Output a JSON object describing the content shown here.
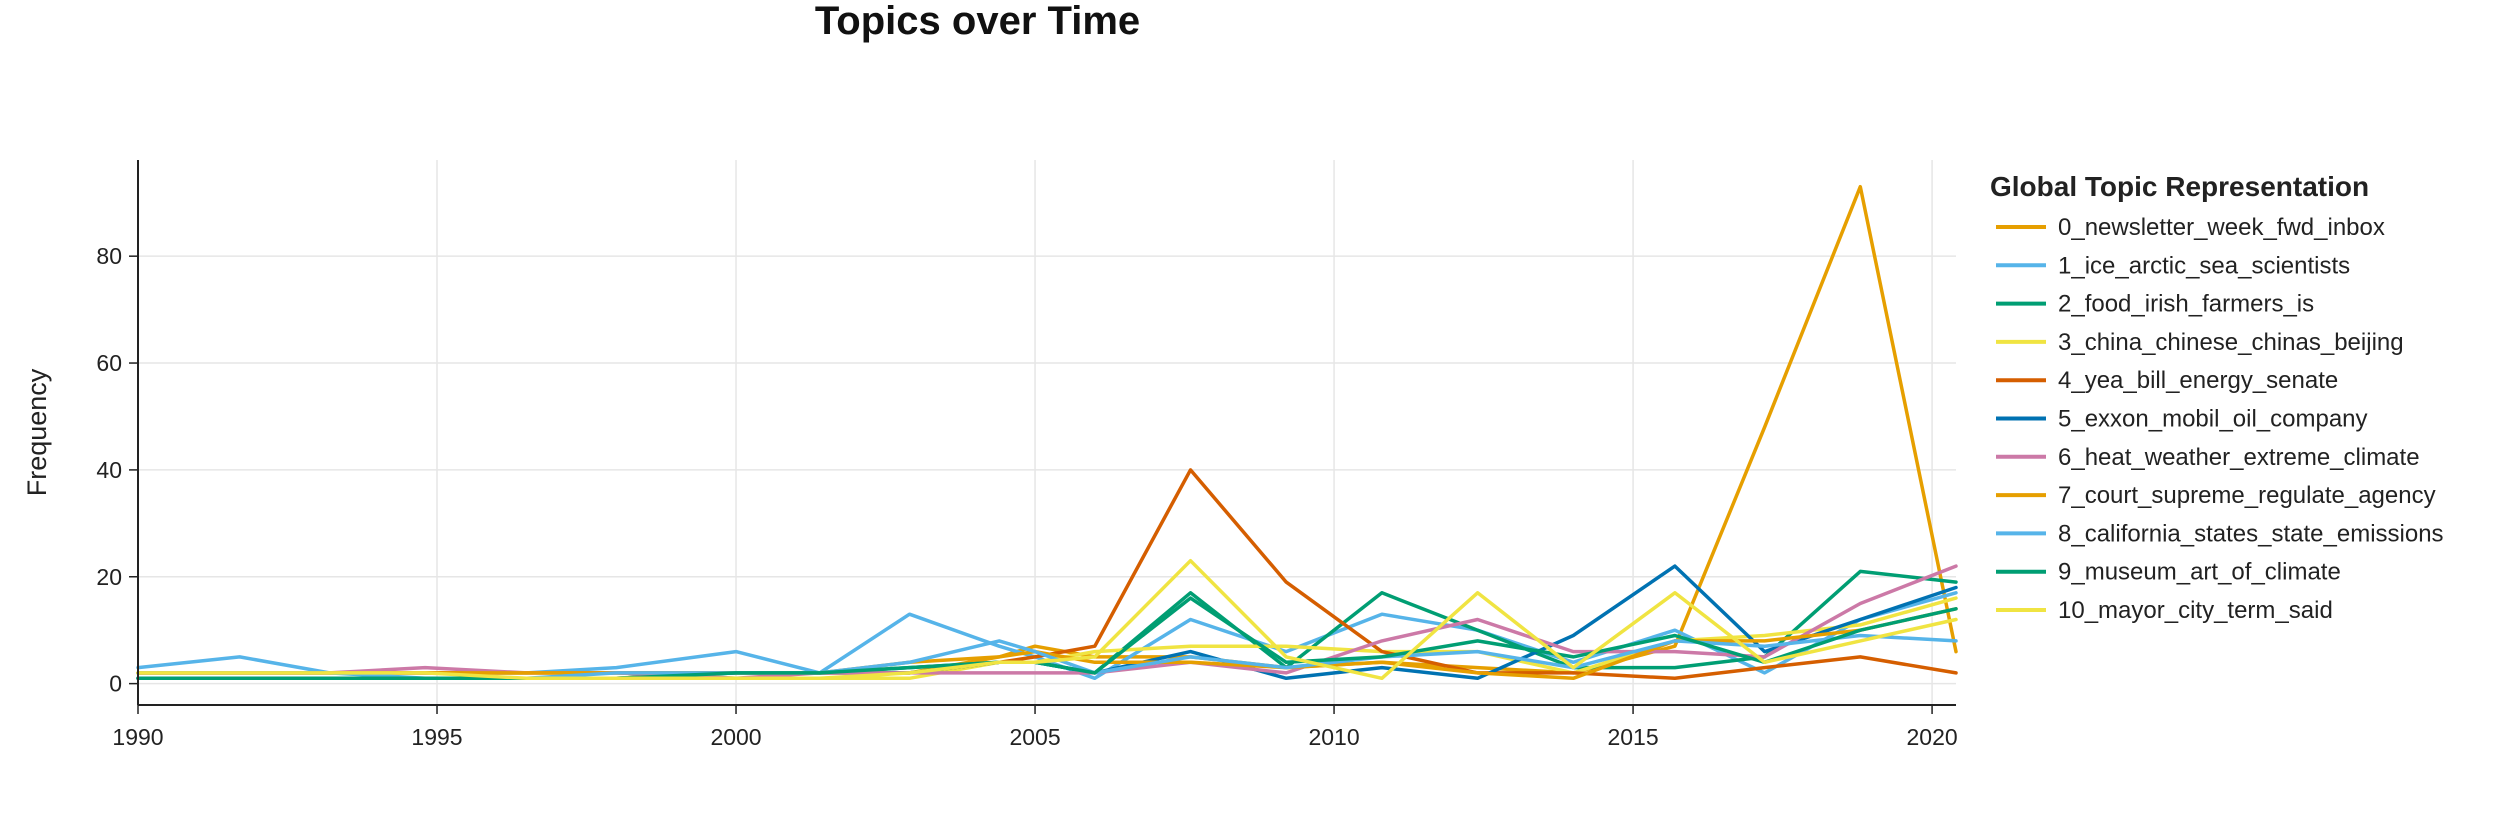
{
  "chart_data": {
    "type": "line",
    "title": "Topics over Time",
    "xlabel": "",
    "ylabel": "Frequency",
    "xlim": [
      1990,
      2020.4
    ],
    "ylim": [
      -4,
      98
    ],
    "x_ticks": [
      1990,
      1995,
      2000,
      2005,
      2010,
      2015,
      2020
    ],
    "y_ticks": [
      0,
      20,
      40,
      60,
      80
    ],
    "grid": true,
    "legend_title": "Global Topic Representation",
    "legend_position": "right",
    "series": [
      {
        "name": "0_newsletter_week_fwd_inbox",
        "color": "#E69F00",
        "points": [
          [
            1990,
            2
          ],
          [
            1991.7,
            2
          ],
          [
            1993.2,
            2
          ],
          [
            1994.8,
            2
          ],
          [
            1996.5,
            2
          ],
          [
            1998,
            2
          ],
          [
            2000,
            2
          ],
          [
            2001.4,
            2
          ],
          [
            2002.9,
            2
          ],
          [
            2004.4,
            5
          ],
          [
            2005,
            7
          ],
          [
            2006,
            5
          ],
          [
            2007.6,
            5
          ],
          [
            2009.2,
            3
          ],
          [
            2010.8,
            4
          ],
          [
            2012.4,
            3
          ],
          [
            2014,
            2
          ],
          [
            2015.7,
            7
          ],
          [
            2017.2,
            48
          ],
          [
            2018.8,
            93
          ],
          [
            2020.4,
            6
          ]
        ]
      },
      {
        "name": "1_ice_arctic_sea_scientists",
        "color": "#56B4E9",
        "points": [
          [
            1990,
            3
          ],
          [
            1991.7,
            5
          ],
          [
            1993.2,
            2
          ],
          [
            1994.8,
            2
          ],
          [
            1996.5,
            2
          ],
          [
            1998,
            3
          ],
          [
            2000,
            6
          ],
          [
            2001.4,
            2
          ],
          [
            2002.9,
            13
          ],
          [
            2004.4,
            7
          ],
          [
            2005,
            5
          ],
          [
            2006,
            1
          ],
          [
            2007.6,
            12
          ],
          [
            2009.2,
            6
          ],
          [
            2010.8,
            13
          ],
          [
            2012.4,
            10
          ],
          [
            2014,
            4
          ],
          [
            2015.7,
            10
          ],
          [
            2017.2,
            2
          ],
          [
            2018.8,
            12
          ],
          [
            2020.4,
            17
          ]
        ]
      },
      {
        "name": "2_food_irish_farmers_is",
        "color": "#009E73",
        "points": [
          [
            1990,
            1
          ],
          [
            1991.7,
            1
          ],
          [
            1993.2,
            1
          ],
          [
            1994.8,
            1
          ],
          [
            1996.5,
            1
          ],
          [
            1998,
            1
          ],
          [
            2000,
            2
          ],
          [
            2001.4,
            2
          ],
          [
            2002.9,
            3
          ],
          [
            2004.4,
            4
          ],
          [
            2005,
            4
          ],
          [
            2006,
            2
          ],
          [
            2007.6,
            17
          ],
          [
            2009.2,
            3
          ],
          [
            2010.8,
            17
          ],
          [
            2012.4,
            10
          ],
          [
            2014,
            3
          ],
          [
            2015.7,
            3
          ],
          [
            2017.2,
            5
          ],
          [
            2018.8,
            21
          ],
          [
            2020.4,
            19
          ]
        ]
      },
      {
        "name": "3_china_chinese_chinas_beijing",
        "color": "#F0E442",
        "points": [
          [
            1990,
            2
          ],
          [
            1991.7,
            2
          ],
          [
            1993.2,
            2
          ],
          [
            1994.8,
            2
          ],
          [
            1996.5,
            2
          ],
          [
            1998,
            2
          ],
          [
            2000,
            1
          ],
          [
            2001.4,
            1
          ],
          [
            2002.9,
            1
          ],
          [
            2004.4,
            4
          ],
          [
            2005,
            4
          ],
          [
            2006,
            6
          ],
          [
            2007.6,
            7
          ],
          [
            2009.2,
            7
          ],
          [
            2010.8,
            6
          ],
          [
            2012.4,
            6
          ],
          [
            2014,
            2
          ],
          [
            2015.7,
            8
          ],
          [
            2017.2,
            9
          ],
          [
            2018.8,
            11
          ],
          [
            2020.4,
            16
          ]
        ]
      },
      {
        "name": "4_yea_bill_energy_senate",
        "color": "#D55E00",
        "points": [
          [
            1990,
            2
          ],
          [
            1991.7,
            2
          ],
          [
            1993.2,
            2
          ],
          [
            1994.8,
            2
          ],
          [
            1996.5,
            2
          ],
          [
            1998,
            2
          ],
          [
            2000,
            2
          ],
          [
            2001.4,
            2
          ],
          [
            2002.9,
            2
          ],
          [
            2004.4,
            4
          ],
          [
            2005,
            5
          ],
          [
            2006,
            7
          ],
          [
            2007.6,
            40
          ],
          [
            2009.2,
            19
          ],
          [
            2010.8,
            6
          ],
          [
            2012.4,
            2
          ],
          [
            2014,
            2
          ],
          [
            2015.7,
            1
          ],
          [
            2017.2,
            3
          ],
          [
            2018.8,
            5
          ],
          [
            2020.4,
            2
          ]
        ]
      },
      {
        "name": "5_exxon_mobil_oil_company",
        "color": "#0072B2",
        "points": [
          [
            1990,
            1
          ],
          [
            1991.7,
            1
          ],
          [
            1993.2,
            1
          ],
          [
            1994.8,
            1
          ],
          [
            1996.5,
            1
          ],
          [
            1998,
            1
          ],
          [
            2000,
            2
          ],
          [
            2001.4,
            2
          ],
          [
            2002.9,
            2
          ],
          [
            2004.4,
            4
          ],
          [
            2005,
            4
          ],
          [
            2006,
            2
          ],
          [
            2007.6,
            6
          ],
          [
            2009.2,
            1
          ],
          [
            2010.8,
            3
          ],
          [
            2012.4,
            1
          ],
          [
            2014,
            9
          ],
          [
            2015.7,
            22
          ],
          [
            2017.2,
            6
          ],
          [
            2018.8,
            12
          ],
          [
            2020.4,
            18
          ]
        ]
      },
      {
        "name": "6_heat_weather_extreme_climate",
        "color": "#CC79A7",
        "points": [
          [
            1990,
            2
          ],
          [
            1991.7,
            2
          ],
          [
            1993.2,
            2
          ],
          [
            1994.8,
            3
          ],
          [
            1996.5,
            2
          ],
          [
            1998,
            2
          ],
          [
            2000,
            1
          ],
          [
            2001.4,
            2
          ],
          [
            2002.9,
            2
          ],
          [
            2004.4,
            2
          ],
          [
            2005,
            2
          ],
          [
            2006,
            2
          ],
          [
            2007.6,
            4
          ],
          [
            2009.2,
            2
          ],
          [
            2010.8,
            8
          ],
          [
            2012.4,
            12
          ],
          [
            2014,
            6
          ],
          [
            2015.7,
            6
          ],
          [
            2017.2,
            5
          ],
          [
            2018.8,
            15
          ],
          [
            2020.4,
            22
          ]
        ]
      },
      {
        "name": "7_court_supreme_regulate_agency",
        "color": "#E69F00",
        "points": [
          [
            1990,
            2
          ],
          [
            1991.7,
            2
          ],
          [
            1993.2,
            2
          ],
          [
            1994.8,
            2
          ],
          [
            1996.5,
            2
          ],
          [
            1998,
            2
          ],
          [
            2000,
            2
          ],
          [
            2001.4,
            2
          ],
          [
            2002.9,
            4
          ],
          [
            2004.4,
            5
          ],
          [
            2005,
            6
          ],
          [
            2006,
            4
          ],
          [
            2007.6,
            4
          ],
          [
            2009.2,
            3
          ],
          [
            2010.8,
            4
          ],
          [
            2012.4,
            2
          ],
          [
            2014,
            1
          ],
          [
            2015.7,
            8
          ],
          [
            2017.2,
            8
          ],
          [
            2018.8,
            10
          ],
          [
            2020.4,
            14
          ]
        ]
      },
      {
        "name": "8_california_states_state_emissions",
        "color": "#56B4E9",
        "points": [
          [
            1990,
            2
          ],
          [
            1991.7,
            2
          ],
          [
            1993.2,
            2
          ],
          [
            1994.8,
            1
          ],
          [
            1996.5,
            1
          ],
          [
            1998,
            2
          ],
          [
            2000,
            2
          ],
          [
            2001.4,
            2
          ],
          [
            2002.9,
            4
          ],
          [
            2004.4,
            8
          ],
          [
            2005,
            6
          ],
          [
            2006,
            2
          ],
          [
            2007.6,
            5
          ],
          [
            2009.2,
            3
          ],
          [
            2010.8,
            5
          ],
          [
            2012.4,
            6
          ],
          [
            2014,
            3
          ],
          [
            2015.7,
            8
          ],
          [
            2017.2,
            7
          ],
          [
            2018.8,
            9
          ],
          [
            2020.4,
            8
          ]
        ]
      },
      {
        "name": "9_museum_art_of_climate",
        "color": "#009E73",
        "points": [
          [
            1990,
            1
          ],
          [
            1991.7,
            1
          ],
          [
            1993.2,
            1
          ],
          [
            1994.8,
            1
          ],
          [
            1996.5,
            1
          ],
          [
            1998,
            1
          ],
          [
            2000,
            2
          ],
          [
            2001.4,
            2
          ],
          [
            2002.9,
            3
          ],
          [
            2004.4,
            4
          ],
          [
            2005,
            4
          ],
          [
            2006,
            2
          ],
          [
            2007.6,
            16
          ],
          [
            2009.2,
            4
          ],
          [
            2010.8,
            5
          ],
          [
            2012.4,
            8
          ],
          [
            2014,
            5
          ],
          [
            2015.7,
            9
          ],
          [
            2017.2,
            4
          ],
          [
            2018.8,
            10
          ],
          [
            2020.4,
            14
          ]
        ]
      },
      {
        "name": "10_mayor_city_term_said",
        "color": "#F0E442",
        "points": [
          [
            1990,
            2
          ],
          [
            1991.7,
            2
          ],
          [
            1993.2,
            2
          ],
          [
            1994.8,
            2
          ],
          [
            1996.5,
            1
          ],
          [
            1998,
            1
          ],
          [
            2000,
            1
          ],
          [
            2001.4,
            1
          ],
          [
            2002.9,
            2
          ],
          [
            2004.4,
            4
          ],
          [
            2005,
            4
          ],
          [
            2006,
            5
          ],
          [
            2007.6,
            23
          ],
          [
            2009.2,
            5
          ],
          [
            2010.8,
            1
          ],
          [
            2012.4,
            17
          ],
          [
            2014,
            3
          ],
          [
            2015.7,
            17
          ],
          [
            2017.2,
            4
          ],
          [
            2018.8,
            8
          ],
          [
            2020.4,
            12
          ]
        ]
      }
    ]
  }
}
